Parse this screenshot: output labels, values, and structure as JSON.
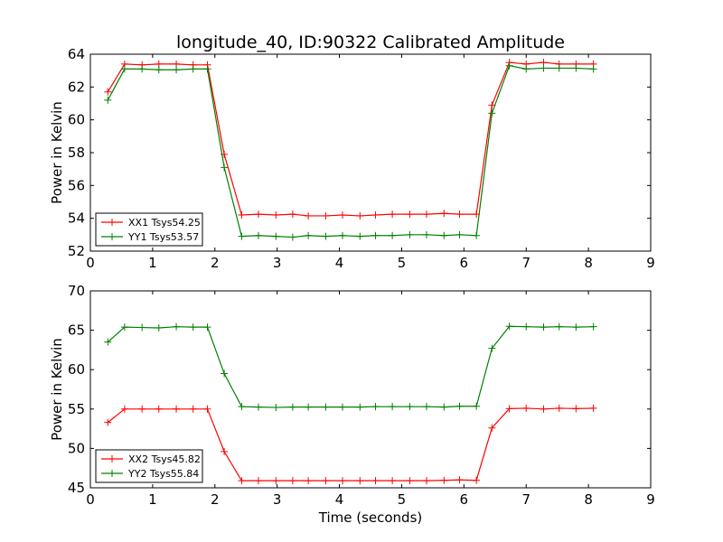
{
  "figure": {
    "title": "longitude_40, ID:90322 Calibrated Amplitude",
    "xlabel": "Time (seconds)"
  },
  "chart_data": [
    {
      "type": "line",
      "title": "longitude_40, ID:90322 Calibrated Amplitude",
      "xlabel": "",
      "ylabel": "Power in Kelvin",
      "xlim": [
        0,
        9
      ],
      "ylim": [
        52,
        64
      ],
      "xticks": [
        "0",
        "1",
        "2",
        "3",
        "4",
        "5",
        "6",
        "7",
        "8",
        "9"
      ],
      "yticks": [
        "52",
        "54",
        "56",
        "58",
        "60",
        "62",
        "64"
      ],
      "grid": false,
      "legend_position": "lower-left",
      "x": [
        0.28,
        0.55,
        0.83,
        1.1,
        1.38,
        1.65,
        1.88,
        2.15,
        2.43,
        2.7,
        2.98,
        3.25,
        3.5,
        3.78,
        4.05,
        4.33,
        4.58,
        4.85,
        5.13,
        5.4,
        5.68,
        5.93,
        6.2,
        6.45,
        6.73,
        7.0,
        7.28,
        7.53,
        7.8,
        8.08
      ],
      "series": [
        {
          "name": "XX1 Tsys54.25",
          "color": "#ff0000",
          "values": [
            61.7,
            63.4,
            63.35,
            63.4,
            63.4,
            63.35,
            63.35,
            57.9,
            54.2,
            54.25,
            54.2,
            54.25,
            54.15,
            54.15,
            54.2,
            54.15,
            54.2,
            54.25,
            54.25,
            54.25,
            54.3,
            54.25,
            54.25,
            60.9,
            63.5,
            63.4,
            63.5,
            63.4,
            63.4,
            63.4
          ]
        },
        {
          "name": "YY1 Tsys53.57",
          "color": "#008000",
          "values": [
            61.2,
            63.1,
            63.1,
            63.05,
            63.05,
            63.1,
            63.1,
            57.1,
            52.9,
            52.95,
            52.9,
            52.85,
            52.95,
            52.9,
            52.95,
            52.9,
            52.95,
            52.95,
            53.0,
            53.0,
            52.95,
            53.0,
            52.95,
            60.4,
            63.3,
            63.1,
            63.15,
            63.15,
            63.15,
            63.1
          ]
        }
      ]
    },
    {
      "type": "line",
      "title": "",
      "xlabel": "Time (seconds)",
      "ylabel": "Power in Kelvin",
      "xlim": [
        0,
        9
      ],
      "ylim": [
        45,
        70
      ],
      "xticks": [
        "0",
        "1",
        "2",
        "3",
        "4",
        "5",
        "6",
        "7",
        "8",
        "9"
      ],
      "yticks": [
        "45",
        "50",
        "55",
        "60",
        "65",
        "70"
      ],
      "grid": false,
      "legend_position": "lower-left",
      "x": [
        0.28,
        0.55,
        0.83,
        1.1,
        1.38,
        1.65,
        1.88,
        2.15,
        2.43,
        2.7,
        2.98,
        3.25,
        3.5,
        3.78,
        4.05,
        4.33,
        4.58,
        4.85,
        5.13,
        5.4,
        5.68,
        5.93,
        6.2,
        6.45,
        6.73,
        7.0,
        7.28,
        7.53,
        7.8,
        8.08
      ],
      "series": [
        {
          "name": "XX2 Tsys45.82",
          "color": "#ff0000",
          "values": [
            53.3,
            55.0,
            55.0,
            55.0,
            55.0,
            55.0,
            55.0,
            49.6,
            45.9,
            45.9,
            45.9,
            45.9,
            45.9,
            45.9,
            45.9,
            45.9,
            45.9,
            45.9,
            45.9,
            45.9,
            45.95,
            46.0,
            45.95,
            52.6,
            55.05,
            55.1,
            55.0,
            55.1,
            55.05,
            55.1
          ]
        },
        {
          "name": "YY2 Tsys55.84",
          "color": "#008000",
          "values": [
            63.5,
            65.4,
            65.35,
            65.3,
            65.45,
            65.4,
            65.4,
            59.5,
            55.3,
            55.25,
            55.2,
            55.25,
            55.25,
            55.25,
            55.25,
            55.25,
            55.3,
            55.3,
            55.3,
            55.3,
            55.25,
            55.35,
            55.35,
            62.7,
            65.5,
            65.45,
            65.4,
            65.45,
            65.4,
            65.45
          ]
        }
      ]
    }
  ]
}
